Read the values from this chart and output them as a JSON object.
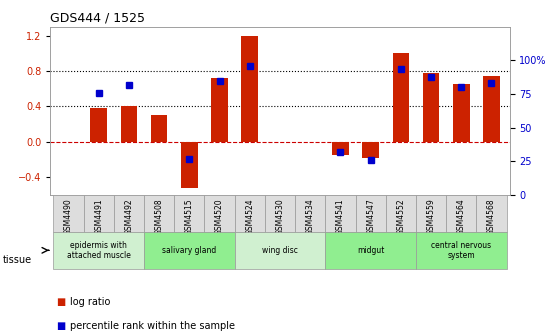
{
  "title": "GDS444 / 1525",
  "samples": [
    "GSM4490",
    "GSM4491",
    "GSM4492",
    "GSM4508",
    "GSM4515",
    "GSM4520",
    "GSM4524",
    "GSM4530",
    "GSM4534",
    "GSM4541",
    "GSM4547",
    "GSM4552",
    "GSM4559",
    "GSM4564",
    "GSM4568"
  ],
  "log_ratio": [
    0.0,
    0.38,
    0.4,
    0.3,
    -0.52,
    0.72,
    1.2,
    0.0,
    0.0,
    -0.15,
    -0.18,
    1.0,
    0.78,
    0.65,
    0.75
  ],
  "percentile": [
    null,
    76,
    82,
    null,
    27,
    85,
    96,
    null,
    null,
    32,
    26,
    94,
    88,
    80,
    83
  ],
  "tissues": [
    {
      "label": "epidermis with\nattached muscle",
      "start": 0,
      "end": 3,
      "color": "#d0f0d0"
    },
    {
      "label": "salivary gland",
      "start": 3,
      "end": 6,
      "color": "#90ee90"
    },
    {
      "label": "wing disc",
      "start": 6,
      "end": 9,
      "color": "#d0f0d0"
    },
    {
      "label": "midgut",
      "start": 9,
      "end": 12,
      "color": "#90ee90"
    },
    {
      "label": "central nervous\nsystem",
      "start": 12,
      "end": 15,
      "color": "#90ee90"
    }
  ],
  "bar_color": "#cc2200",
  "dot_color": "#0000cc",
  "ylim_left": [
    -0.6,
    1.3
  ],
  "ylim_right": [
    0,
    125
  ],
  "yticks_left": [
    -0.4,
    0.0,
    0.4,
    0.8,
    1.2
  ],
  "yticks_right": [
    0,
    25,
    50,
    75,
    100
  ],
  "ytick_labels_right": [
    "0",
    "25",
    "50",
    "75",
    "100%"
  ],
  "hline_values": [
    0.0,
    0.4,
    0.8
  ],
  "hline_styles": [
    "--",
    ":",
    ":"
  ],
  "hline_colors": [
    "#cc0000",
    "black",
    "black"
  ],
  "grid_color": "#888888",
  "bg_color": "#ffffff",
  "xlabel_color": "black",
  "tick_label_color": "#555555",
  "sample_bg_color": "#dddddd",
  "sample_border_color": "#999999"
}
